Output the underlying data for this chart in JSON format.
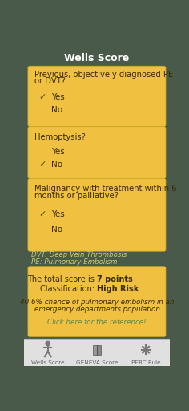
{
  "title": "Wells Score",
  "title_bg": "#4a5a4a",
  "title_color": "#ffffff",
  "card_bg": "#f0c040",
  "card_border": "#c8a820",
  "main_bg": "#4a5a4a",
  "cards": [
    {
      "question_lines": [
        "Previous, objectively diagnosed PE",
        "or DVT?"
      ],
      "options": [
        {
          "label": "Yes",
          "checked": true
        },
        {
          "label": "No",
          "checked": false
        }
      ]
    },
    {
      "question_lines": [
        "Hemoptysis?"
      ],
      "options": [
        {
          "label": "Yes",
          "checked": false
        },
        {
          "label": "No",
          "checked": true
        }
      ]
    },
    {
      "question_lines": [
        "Malignancy with treatment within 6",
        "months or palliative?"
      ],
      "options": [
        {
          "label": "Yes",
          "checked": true
        },
        {
          "label": "No",
          "checked": false
        }
      ]
    }
  ],
  "footnote1": "DVT: Deep Vein Thrombosis",
  "footnote2": "PE: Pulmonary Embolism",
  "result_bg": "#f0c040",
  "result_line1_normal": "The total score is ",
  "result_line1_bold": "7 points",
  "result_line2_normal": "Classification: ",
  "result_line2_bold": "High Risk",
  "result_line3a": "40.6% chance of pulmonary embolism in an",
  "result_line3b": "emergency departments population",
  "result_link": "Click here for the reference!",
  "nav_items": [
    "Wells Score",
    "GENEVA Score",
    "PERC Rule"
  ],
  "nav_bg": "#e0e0e0",
  "nav_text_color": "#666666",
  "check_color": "#5a4a00",
  "footnote_color": "#c8c870",
  "link_color": "#5a8a50",
  "text_dark": "#3a2a00"
}
